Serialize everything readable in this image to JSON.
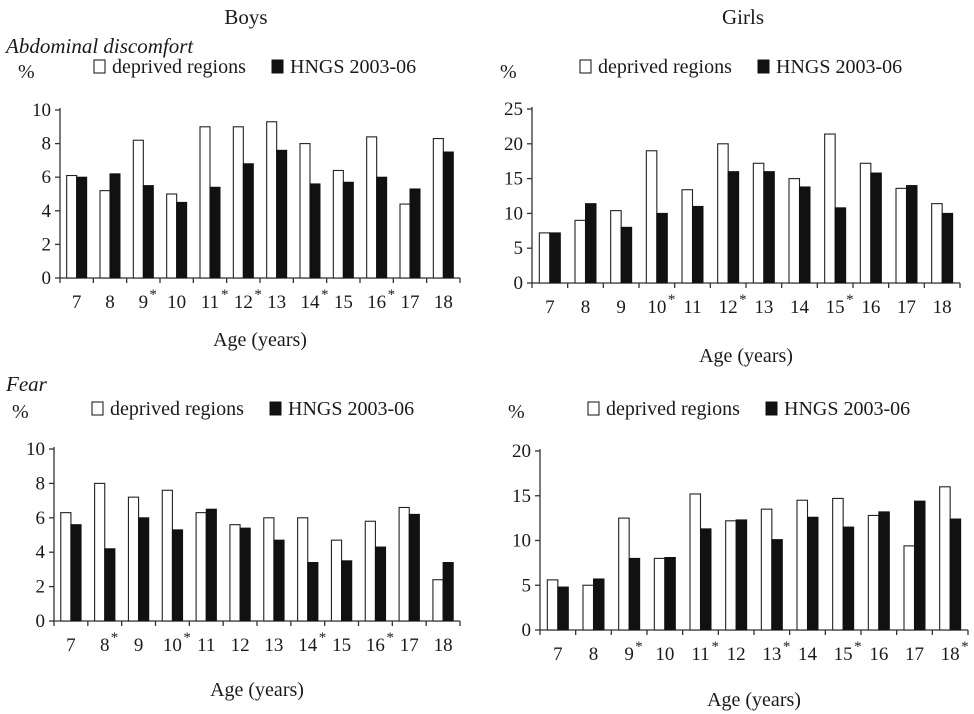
{
  "headers": {
    "boys": "Boys",
    "girls": "Girls"
  },
  "sections": {
    "top": "Abdominal discomfort",
    "bottom": "Fear"
  },
  "legend": {
    "deprived": "deprived regions",
    "hngs": "HNGS 2003-06"
  },
  "colors": {
    "deprived": "#ffffff",
    "hngs": "#111111",
    "axis": "#333333"
  },
  "chart_data": [
    {
      "type": "bar",
      "group": "Boys",
      "panel": "Abdominal discomfort",
      "ylabel": "%",
      "xlabel": "Age (years)",
      "ylim": [
        0,
        10
      ],
      "yticks": [
        0,
        2,
        4,
        6,
        8,
        10
      ],
      "legend_position": "top",
      "categories": [
        "7",
        "8",
        "9",
        "10",
        "11",
        "12",
        "13",
        "14",
        "15",
        "16",
        "17",
        "18"
      ],
      "significant": [
        false,
        false,
        true,
        false,
        true,
        true,
        false,
        true,
        false,
        true,
        false,
        false
      ],
      "series": [
        {
          "name": "deprived regions",
          "values": [
            6.1,
            5.2,
            8.2,
            5.0,
            9.0,
            9.0,
            9.3,
            8.0,
            6.4,
            8.4,
            4.4,
            8.3
          ]
        },
        {
          "name": "HNGS 2003-06",
          "values": [
            6.0,
            6.2,
            5.5,
            4.5,
            5.4,
            6.8,
            7.6,
            5.6,
            5.7,
            6.0,
            5.3,
            7.5
          ]
        }
      ]
    },
    {
      "type": "bar",
      "group": "Girls",
      "panel": "Abdominal discomfort",
      "ylabel": "%",
      "xlabel": "Age (years)",
      "ylim": [
        0,
        25
      ],
      "yticks": [
        0,
        5,
        10,
        15,
        20,
        25
      ],
      "legend_position": "top",
      "categories": [
        "7",
        "8",
        "9",
        "10",
        "11",
        "12",
        "13",
        "14",
        "15",
        "16",
        "17",
        "18"
      ],
      "significant": [
        false,
        false,
        false,
        true,
        false,
        true,
        false,
        false,
        true,
        false,
        false,
        false
      ],
      "series": [
        {
          "name": "deprived regions",
          "values": [
            7.2,
            9.0,
            10.4,
            19.0,
            13.4,
            20.0,
            17.2,
            15.0,
            21.4,
            17.2,
            13.6,
            11.4
          ]
        },
        {
          "name": "HNGS 2003-06",
          "values": [
            7.2,
            11.4,
            8.0,
            10.0,
            11.0,
            16.0,
            16.0,
            13.8,
            10.8,
            15.8,
            14.0,
            10.0
          ]
        }
      ]
    },
    {
      "type": "bar",
      "group": "Boys",
      "panel": "Fear",
      "ylabel": "%",
      "xlabel": "Age (years)",
      "ylim": [
        0,
        10
      ],
      "yticks": [
        0,
        2,
        4,
        6,
        8,
        10
      ],
      "legend_position": "top",
      "categories": [
        "7",
        "8",
        "9",
        "10",
        "11",
        "12",
        "13",
        "14",
        "15",
        "16",
        "17",
        "18"
      ],
      "significant": [
        false,
        true,
        false,
        true,
        false,
        false,
        false,
        true,
        false,
        true,
        false,
        false
      ],
      "series": [
        {
          "name": "deprived regions",
          "values": [
            6.3,
            8.0,
            7.2,
            7.6,
            6.3,
            5.6,
            6.0,
            6.0,
            4.7,
            5.8,
            6.6,
            2.4
          ]
        },
        {
          "name": "HNGS 2003-06",
          "values": [
            5.6,
            4.2,
            6.0,
            5.3,
            6.5,
            5.4,
            4.7,
            3.4,
            3.5,
            4.3,
            6.2,
            3.4
          ]
        }
      ]
    },
    {
      "type": "bar",
      "group": "Girls",
      "panel": "Fear",
      "ylabel": "%",
      "xlabel": "Age (years)",
      "ylim": [
        0,
        20
      ],
      "yticks": [
        0,
        5,
        10,
        15,
        20
      ],
      "legend_position": "top",
      "categories": [
        "7",
        "8",
        "9",
        "10",
        "11",
        "12",
        "13",
        "14",
        "15",
        "16",
        "17",
        "18"
      ],
      "significant": [
        false,
        false,
        true,
        false,
        true,
        false,
        true,
        false,
        true,
        false,
        false,
        true
      ],
      "series": [
        {
          "name": "deprived regions",
          "values": [
            5.6,
            5.0,
            12.5,
            8.0,
            15.2,
            12.2,
            13.5,
            14.5,
            14.7,
            12.8,
            9.4,
            16.0
          ]
        },
        {
          "name": "HNGS 2003-06",
          "values": [
            4.8,
            5.7,
            8.0,
            8.1,
            11.3,
            12.3,
            10.1,
            12.6,
            11.5,
            13.2,
            14.4,
            12.4
          ]
        }
      ]
    }
  ]
}
